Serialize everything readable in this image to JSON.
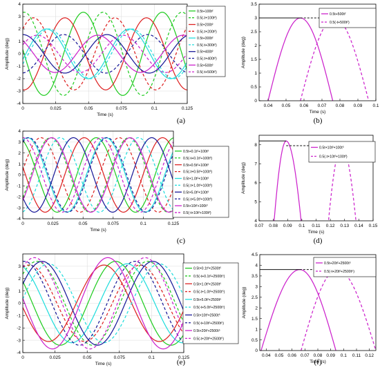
{
  "figure": {
    "panel_letters": [
      "(a)",
      "(b)",
      "(c)",
      "(d)",
      "(e)",
      "(f)"
    ]
  },
  "chart_data": [
    {
      "panel": "(a)",
      "type": "line",
      "xlabel": "Time (s)",
      "ylabel": "Amplitude (deg)",
      "xlim": [
        0,
        0.125
      ],
      "ylim": [
        -4,
        4
      ],
      "xticks": [
        "0",
        "0.025",
        "0.05",
        "0.075",
        "0.1",
        "0.125"
      ],
      "yticks": [
        "-4",
        "-3",
        "-2",
        "-1",
        "0",
        "1",
        "2",
        "3",
        "4"
      ],
      "grid": true,
      "legend": "right",
      "series": [
        {
          "name": "0.5t+100t²",
          "color": "#22cc22",
          "dash": false,
          "amp": 3.35,
          "period": 0.06,
          "peak": 0.046
        },
        {
          "name": "0.5(-t+100t²)",
          "color": "#22cc22",
          "dash": true,
          "amp": 3.35,
          "period": 0.06,
          "peak": 0.061
        },
        {
          "name": "0.5t+200t²",
          "color": "#dd2222",
          "dash": false,
          "amp": 2.9,
          "period": 0.062,
          "peak": 0.032
        },
        {
          "name": "0.5(-t+200t²)",
          "color": "#dd2222",
          "dash": true,
          "amp": 2.9,
          "period": 0.062,
          "peak": 0.07
        },
        {
          "name": "0.5t+300t²",
          "color": "#22dddd",
          "dash": false,
          "amp": 2.0,
          "period": 0.063,
          "peak": 0.018
        },
        {
          "name": "0.5(-t+300t²)",
          "color": "#22dddd",
          "dash": true,
          "amp": 2.0,
          "period": 0.063,
          "peak": 0.083
        },
        {
          "name": "0.5t+400t²",
          "color": "#1a1a99",
          "dash": false,
          "amp": 1.55,
          "period": 0.064,
          "peak": 0.0
        },
        {
          "name": "0.5(-t+400t²)",
          "color": "#1a1a99",
          "dash": true,
          "amp": 1.55,
          "period": 0.064,
          "peak": 0.095
        },
        {
          "name": "0.5t+500t²",
          "color": "#cc22cc",
          "dash": false,
          "amp": 1.5,
          "period": 0.065,
          "peak": 0.057
        },
        {
          "name": "0.5(-t+500t²)",
          "color": "#cc22cc",
          "dash": true,
          "amp": 1.5,
          "period": 0.065,
          "peak": 0.076
        }
      ]
    },
    {
      "panel": "(b)",
      "type": "line",
      "xlabel": "Time (s)",
      "ylabel": "Amplitude (deg)",
      "xlim": [
        0.035,
        0.1
      ],
      "ylim": [
        0,
        3.5
      ],
      "xticks": [
        "0.04",
        "0.05",
        "0.06",
        "0.07",
        "0.08",
        "0.09",
        "0.1"
      ],
      "yticks": [
        "0",
        "0.5",
        "1",
        "1.5",
        "2",
        "2.5",
        "3",
        "3.5"
      ],
      "grid": false,
      "legend": "top-right",
      "hline": {
        "y": 3.0,
        "x0": 0.035,
        "x1": 0.058,
        "x2": 0.077
      },
      "series": [
        {
          "name": "0.5t+500t²",
          "color": "#cc22cc",
          "dash": false,
          "arch": [
            0.04,
            0.058,
            0.076
          ],
          "peak_y": 3.0
        },
        {
          "name": "0.5(-t+500t²)",
          "color": "#cc22cc",
          "dash": true,
          "arch": [
            0.058,
            0.077,
            0.096
          ],
          "peak_y": 3.0
        }
      ]
    },
    {
      "panel": "(c)",
      "type": "line",
      "xlabel": "Time (s)",
      "ylabel": "Amplitude (deg)",
      "xlim": [
        0,
        0.125
      ],
      "ylim": [
        -4,
        4
      ],
      "xticks": [
        "0",
        "0.025",
        "0.05",
        "0.075",
        "0.1",
        "0.125"
      ],
      "yticks": [
        "-4",
        "-3",
        "-2",
        "-1",
        "0",
        "1",
        "2",
        "3",
        "4"
      ],
      "grid": true,
      "legend": "right",
      "series": [
        {
          "name": "0.5t+0.1t²+100t³",
          "color": "#22cc22",
          "dash": false,
          "amp": 3.4,
          "period": 0.065,
          "peak": 0.061
        },
        {
          "name": "0.5(-t+0.1t²+100t³)",
          "color": "#22cc22",
          "dash": true,
          "amp": 3.4,
          "period": 0.065,
          "peak": 0.023
        },
        {
          "name": "0.5t+0.5t²+100t³",
          "color": "#dd2222",
          "dash": false,
          "amp": 3.4,
          "period": 0.065,
          "peak": 0.051
        },
        {
          "name": "0.5(-t+0.5t²+100t³)",
          "color": "#dd2222",
          "dash": true,
          "amp": 3.4,
          "period": 0.065,
          "peak": 0.015
        },
        {
          "name": "0.5t+1.0t²+100t³",
          "color": "#22dddd",
          "dash": false,
          "amp": 3.4,
          "period": 0.065,
          "peak": 0.069
        },
        {
          "name": "0.5(-t+1.0t²+100t³)",
          "color": "#22dddd",
          "dash": true,
          "amp": 3.4,
          "period": 0.065,
          "peak": 0.031
        },
        {
          "name": "0.5t+5.0t²+100t³",
          "color": "#1a1a99",
          "dash": false,
          "amp": 3.4,
          "period": 0.065,
          "peak": 0.042
        },
        {
          "name": "0.5(-t+5.0t²+100t³)",
          "color": "#1a1a99",
          "dash": true,
          "amp": 3.4,
          "period": 0.065,
          "peak": 0.005
        },
        {
          "name": "0.5t+10t²+100t³",
          "color": "#cc22cc",
          "dash": false,
          "amp": 3.4,
          "period": 0.065,
          "peak": 0.089
        },
        {
          "name": "0.5(-t+10t²+100t³)",
          "color": "#cc22cc",
          "dash": true,
          "amp": 3.4,
          "period": 0.065,
          "peak": 0.13
        }
      ]
    },
    {
      "panel": "(d)",
      "type": "line",
      "xlabel": "Time (s)",
      "ylabel": "Amplitude (deg)",
      "xlim": [
        0.07,
        0.15
      ],
      "ylim": [
        4,
        8.5
      ],
      "xticks": [
        "0.07",
        "0.08",
        "0.09",
        "0.1",
        "0.11",
        "0.12",
        "0.13",
        "0.14",
        "0.15"
      ],
      "yticks": [
        "4",
        "5",
        "6",
        "7",
        "8"
      ],
      "grid": false,
      "legend": "top-right",
      "hline": {
        "y": 8.2,
        "x0": 0.07,
        "x1": 0.089,
        "y2": 7.95,
        "x2": 0.128
      },
      "series": [
        {
          "name": "0.5t+10t²+100t³",
          "color": "#cc22cc",
          "dash": false,
          "arch": [
            0.0765,
            0.089,
            0.1045
          ],
          "peak_y": 8.2
        },
        {
          "name": "0.5(-t+10t²+100t³)",
          "color": "#cc22cc",
          "dash": true,
          "arch": [
            0.114,
            0.128,
            0.143
          ],
          "peak_y": 7.95
        }
      ]
    },
    {
      "panel": "(e)",
      "type": "line",
      "xlabel": "Time (s)",
      "ylabel": "Amplitude (deg)",
      "xlim": [
        0,
        0.125
      ],
      "ylim": [
        -4,
        4
      ],
      "xticks": [
        "0",
        "0.025",
        "0.05",
        "0.075",
        "0.1",
        "0.125"
      ],
      "yticks": [
        "-4",
        "-3",
        "-2",
        "-1",
        "0",
        "1",
        "2",
        "3"
      ],
      "grid": true,
      "legend": "right",
      "series": [
        {
          "name": "0.5t+0.1t²+2500t⁵",
          "color": "#22cc22",
          "dash": false,
          "amp": 3.4,
          "period": 0.086,
          "peak": 0.072
        },
        {
          "name": "0.5(-t+0.1t²+2500t⁵)",
          "color": "#22cc22",
          "dash": true,
          "amp": 3.4,
          "period": 0.086,
          "peak": 0.011
        },
        {
          "name": "0.5t+1.0t²+2500t⁵",
          "color": "#dd2222",
          "dash": false,
          "amp": 3.1,
          "period": 0.086,
          "peak": 0.063
        },
        {
          "name": "0.5(-t+1.0t²+2500t⁵)",
          "color": "#dd2222",
          "dash": true,
          "amp": 3.1,
          "period": 0.086,
          "peak": 0.005
        },
        {
          "name": "0.5t+5.0t²+2500t⁵",
          "color": "#22dddd",
          "dash": false,
          "amp": 3.2,
          "period": 0.086,
          "peak": 0.081
        },
        {
          "name": "0.5(-t+5.0t²+2500t⁵)",
          "color": "#22dddd",
          "dash": true,
          "amp": 3.2,
          "period": 0.086,
          "peak": 0.02
        },
        {
          "name": "0.5t+10t²+2500t⁵",
          "color": "#1a1a99",
          "dash": false,
          "amp": 3.4,
          "period": 0.086,
          "peak": 0.101
        },
        {
          "name": "0.5(-t+10t²+2500t⁵)",
          "color": "#1a1a99",
          "dash": true,
          "amp": 3.4,
          "period": 0.086,
          "peak": 0.001
        },
        {
          "name": "0.5t+20t²+2500t⁵",
          "color": "#cc22cc",
          "dash": false,
          "amp": 3.7,
          "period": 0.086,
          "peak": 0.066
        },
        {
          "name": "0.5(-t+20t²+2500t⁵)",
          "color": "#cc22cc",
          "dash": true,
          "amp": 3.7,
          "period": 0.086,
          "peak": 0.095
        }
      ]
    },
    {
      "panel": "(f)",
      "type": "line",
      "xlabel": "Time (s)",
      "ylabel": "Amplitude (deg)",
      "xlim": [
        0.035,
        0.125
      ],
      "ylim": [
        0,
        4.5
      ],
      "xticks": [
        "0.04",
        "0.05",
        "0.06",
        "0.07",
        "0.08",
        "0.09",
        "0.1",
        "0.11",
        "0.12"
      ],
      "yticks": [
        "0",
        "0.5",
        "1",
        "1.5",
        "2",
        "2.5",
        "3",
        "3.5",
        "4",
        "4.5"
      ],
      "grid": false,
      "legend": "top-right",
      "hline": {
        "y": 3.8,
        "x0": 0.035,
        "x1": 0.066,
        "x2": 0.095
      },
      "series": [
        {
          "name": "0.5t+20t²+2500t⁵",
          "color": "#cc22cc",
          "dash": false,
          "arch": [
            0.036,
            0.066,
            0.094
          ],
          "peak_y": 3.8
        },
        {
          "name": "0.5(-t+20t²+2500t⁵)",
          "color": "#cc22cc",
          "dash": true,
          "arch": [
            0.067,
            0.095,
            0.125
          ],
          "peak_y": 3.8
        }
      ]
    }
  ]
}
